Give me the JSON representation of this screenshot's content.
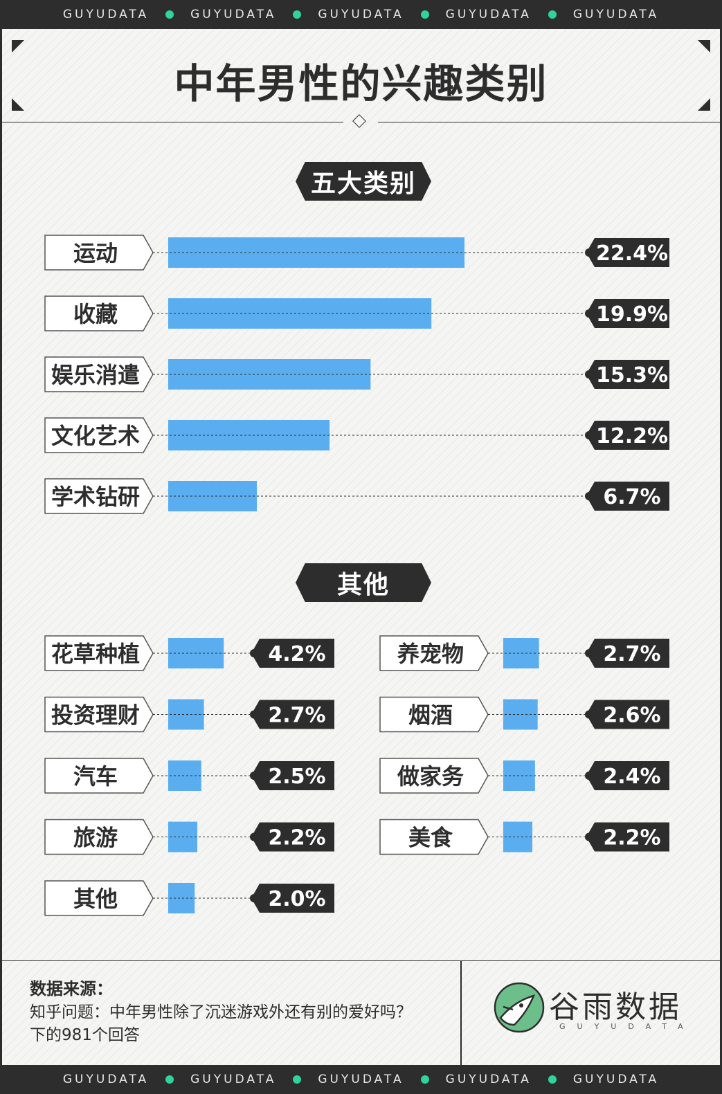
{
  "banner": {
    "words": [
      "GUYUDATA",
      "GUYUDATA",
      "GUYUDATA",
      "GUYUDATA",
      "GUYUDATA"
    ],
    "dot_color": "#2fd49a"
  },
  "title": "中年男性的兴趣类别",
  "sections": {
    "major": "五大类别",
    "other": "其他"
  },
  "colors": {
    "bar": "#5aaef0",
    "dark": "#2d2d2d",
    "label_bg": "#ffffff"
  },
  "chart_data": [
    {
      "type": "bar",
      "orientation": "horizontal",
      "title": "",
      "categories": [
        "运动",
        "收藏",
        "娱乐消遣",
        "文化艺术",
        "学术钻研"
      ],
      "values": [
        22.4,
        19.9,
        15.3,
        12.2,
        6.7
      ],
      "value_labels": [
        "22.4%",
        "19.9%",
        "15.3%",
        "12.2%",
        "6.7%"
      ],
      "xlim": [
        0,
        22.4
      ]
    },
    {
      "type": "bar",
      "orientation": "horizontal",
      "title": "",
      "categories": [
        "花草种植",
        "投资理财",
        "汽车",
        "旅游",
        "其他",
        "养宠物",
        "烟酒",
        "做家务",
        "美食"
      ],
      "values": [
        4.2,
        2.7,
        2.5,
        2.2,
        2.0,
        2.7,
        2.6,
        2.4,
        2.2
      ],
      "value_labels": [
        "4.2%",
        "2.7%",
        "2.5%",
        "2.2%",
        "2.0%",
        "2.7%",
        "2.6%",
        "2.4%",
        "2.2%"
      ],
      "xlim": [
        0,
        22.4
      ]
    }
  ],
  "footer": {
    "source_title": "数据来源：",
    "source_lines": [
      "知乎问题：中年男性除了沉迷游戏外还有别的爱好吗？",
      "下的981个回答"
    ],
    "brand_name": "谷雨数据",
    "brand_sub": "GUYUDATA"
  }
}
